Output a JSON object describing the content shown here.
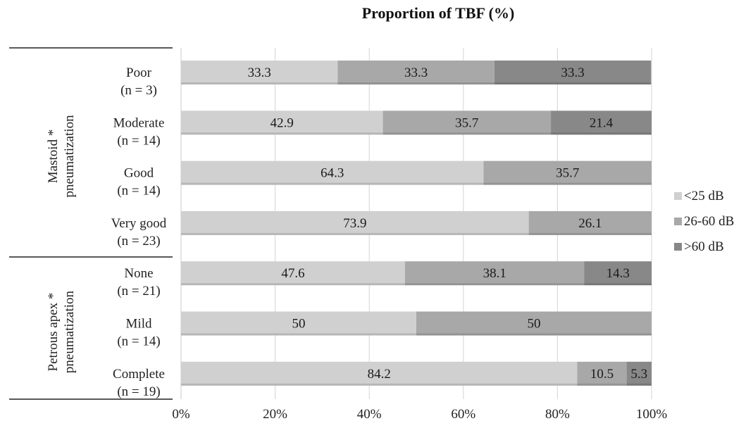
{
  "chart_data": {
    "type": "bar",
    "stacked": true,
    "orientation": "horizontal",
    "percent": true,
    "title": "Proportion of TBF (%)",
    "xlim": [
      0,
      100
    ],
    "x_ticks": [
      "0%",
      "20%",
      "40%",
      "60%",
      "80%",
      "100%"
    ],
    "grid": "vertical",
    "legend_position": "right",
    "groups": [
      {
        "label_lines": [
          "Mastoid *",
          "pneumatization"
        ],
        "start": 0,
        "count": 4
      },
      {
        "label_lines": [
          "Petrous apex *",
          "pneumatization"
        ],
        "start": 4,
        "count": 3
      }
    ],
    "categories": [
      {
        "name": "Poor",
        "n": "(n = 3)"
      },
      {
        "name": "Moderate",
        "n": "(n = 14)"
      },
      {
        "name": "Good",
        "n": "(n = 14)"
      },
      {
        "name": "Very good",
        "n": "(n = 23)"
      },
      {
        "name": "None",
        "n": "(n = 21)"
      },
      {
        "name": "Mild",
        "n": "(n  = 14)"
      },
      {
        "name": "Complete",
        "n": "(n = 19)"
      }
    ],
    "series": [
      {
        "name": "<25 dB",
        "color": "#d0d0d0",
        "values": [
          33.3,
          42.9,
          64.3,
          73.9,
          47.6,
          50,
          84.2
        ],
        "labels": [
          "33.3",
          "42.9",
          "64.3",
          "73.9",
          "47.6",
          "50",
          "84.2"
        ]
      },
      {
        "name": "26-60 dB",
        "color": "#a8a8a8",
        "values": [
          33.3,
          35.7,
          35.7,
          26.1,
          38.1,
          50,
          10.5
        ],
        "labels": [
          "33.3",
          "35.7",
          "35.7",
          "26.1",
          "38.1",
          "50",
          "10.5"
        ]
      },
      {
        "name": ">60 dB",
        "color": "#888888",
        "values": [
          33.3,
          21.4,
          0,
          0,
          14.3,
          0,
          5.3
        ],
        "labels": [
          "33.3",
          "21.4",
          "",
          "",
          "14.3",
          "",
          "5.3"
        ]
      }
    ]
  }
}
